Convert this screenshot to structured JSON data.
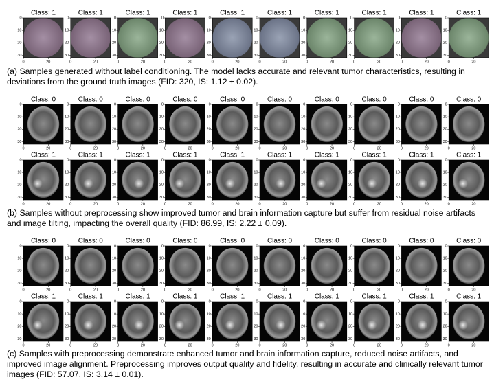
{
  "axis": {
    "yticks": [
      0,
      10,
      20,
      30
    ],
    "xticks": [
      0,
      20
    ]
  },
  "panels": [
    {
      "rows": [
        [
          "Class: 1",
          "Class: 1",
          "Class: 1",
          "Class: 1",
          "Class: 1",
          "Class: 1",
          "Class: 1",
          "Class: 1",
          "Class: 1",
          "Class: 1"
        ]
      ],
      "caption": "(a) Samples generated without label conditioning. The model lacks accurate and relevant tumor characteristics, resulting in deviations from the ground truth images (FID: 320, IS: 1.12 ± 0.02)."
    },
    {
      "rows": [
        [
          "Class: 0",
          "Class: 0",
          "Class: 0",
          "Class: 0",
          "Class: 0",
          "Class: 0",
          "Class: 0",
          "Class: 0",
          "Class: 0",
          "Class: 0"
        ],
        [
          "Class: 1",
          "Class: 1",
          "Class: 1",
          "Class: 1",
          "Class: 1",
          "Class: 1",
          "Class: 1",
          "Class: 1",
          "Class: 1",
          "Class: 1"
        ]
      ],
      "caption": "(b) Samples without preprocessing show improved tumor and brain information capture but suffer from residual noise artifacts and image tilting, impacting the overall quality (FID: 86.99, IS: 2.22 ± 0.09)."
    },
    {
      "rows": [
        [
          "Class: 0",
          "Class: 0",
          "Class: 0",
          "Class: 0",
          "Class: 0",
          "Class: 0",
          "Class: 0",
          "Class: 0",
          "Class: 0",
          "Class: 0"
        ],
        [
          "Class: 1",
          "Class: 1",
          "Class: 1",
          "Class: 1",
          "Class: 1",
          "Class: 1",
          "Class: 1",
          "Class: 1",
          "Class: 1",
          "Class: 1"
        ]
      ],
      "caption": "(c) Samples with preprocessing demonstrate enhanced tumor and brain information capture, reduced noise artifacts, and improved image alignment. Preprocessing improves output quality and fidelity, resulting in accurate and clinically relevant tumor images (FID: 57.07, IS: 3.14 ± 0.01)."
    }
  ]
}
